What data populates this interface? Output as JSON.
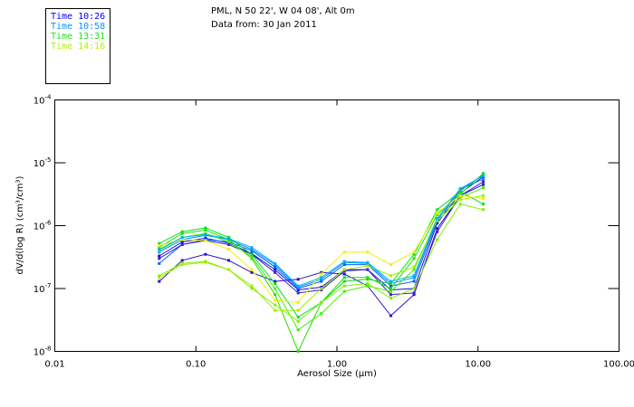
{
  "header": {
    "line1": "PML, N 50 22', W 04 08', Alt 0m",
    "line2": "Data from: 30 Jan 2011"
  },
  "legend": {
    "items": [
      {
        "label": "Time 10:26",
        "color": "#0000ff"
      },
      {
        "label": "Time 10:58",
        "color": "#0090ff"
      },
      {
        "label": "Time 13:31",
        "color": "#20e020"
      },
      {
        "label": "Time 14:16",
        "color": "#b0f000"
      }
    ]
  },
  "chart_data": {
    "type": "line",
    "title": "",
    "xlabel": "Aerosol Size (µm)",
    "ylabel": "dV/d(log R) (cm³/cm³)",
    "xscale": "log",
    "yscale": "log",
    "xlim": [
      0.01,
      100
    ],
    "ylim": [
      1e-08,
      0.0001
    ],
    "xticks": [
      "0.01",
      "0.10",
      "1.00",
      "10.00",
      "100.00"
    ],
    "yticks": [
      {
        "base": "10",
        "exp": "-4"
      },
      {
        "base": "10",
        "exp": "-5"
      },
      {
        "base": "10",
        "exp": "-6"
      },
      {
        "base": "10",
        "exp": "-7"
      },
      {
        "base": "10",
        "exp": "-8"
      }
    ],
    "x": [
      0.055,
      0.08,
      0.117,
      0.171,
      0.249,
      0.364,
      0.531,
      0.775,
      1.13,
      1.65,
      2.41,
      3.52,
      5.14,
      7.5,
      10.9
    ],
    "series": [
      {
        "color": "#1010e0",
        "values": [
          3.3e-07,
          5.5e-07,
          6.3e-07,
          5.3e-07,
          3.6e-07,
          2e-07,
          9.5e-08,
          1.05e-07,
          2e-07,
          2e-07,
          9.5e-08,
          1e-07,
          1.1e-06,
          3.3e-06,
          6e-06
        ]
      },
      {
        "color": "#0060ff",
        "values": [
          2.5e-07,
          5e-07,
          6e-07,
          5.5e-07,
          4e-07,
          2.2e-07,
          1e-07,
          1.3e-07,
          2.4e-07,
          2.4e-07,
          1.1e-07,
          1.3e-07,
          1.2e-06,
          3.6e-06,
          6.5e-06
        ]
      },
      {
        "color": "#0090ff",
        "values": [
          3.8e-07,
          6e-07,
          7e-07,
          6e-07,
          4.2e-07,
          2.4e-07,
          1.05e-07,
          1.4e-07,
          2.6e-07,
          2.5e-07,
          1.2e-07,
          1.5e-07,
          1.3e-06,
          3.8e-06,
          5.5e-06
        ]
      },
      {
        "color": "#3010c0",
        "values": [
          1.3e-07,
          2.8e-07,
          3.5e-07,
          2.8e-07,
          1.8e-07,
          1.3e-07,
          1.4e-07,
          1.8e-07,
          1.7e-07,
          1.1e-07,
          3.7e-08,
          8e-08,
          9e-07,
          3e-06,
          4.5e-06
        ]
      },
      {
        "color": "#4020d0",
        "values": [
          3e-07,
          5e-07,
          5.8e-07,
          5e-07,
          3.5e-07,
          1.8e-07,
          8.5e-08,
          9.5e-08,
          1.9e-07,
          2e-07,
          8e-08,
          8.5e-08,
          8e-07,
          3e-06,
          5e-06
        ]
      },
      {
        "color": "#00e020",
        "values": [
          5.2e-07,
          8e-07,
          9.2e-07,
          6.5e-07,
          3.5e-07,
          1.2e-07,
          3.5e-08,
          6e-08,
          1.3e-07,
          1.4e-07,
          1.2e-07,
          3.5e-07,
          1.8e-06,
          3.5e-06,
          2.2e-06
        ]
      },
      {
        "color": "#20e000",
        "values": [
          4.5e-07,
          7.5e-07,
          8.5e-07,
          6e-07,
          3e-07,
          8e-08,
          1e-08,
          6e-08,
          1.5e-07,
          1.5e-07,
          1e-07,
          3e-07,
          1.5e-06,
          3.2e-06,
          6.8e-06
        ]
      },
      {
        "color": "#40f000",
        "values": [
          4e-07,
          6.5e-07,
          7.5e-07,
          5.5e-07,
          3.2e-07,
          1e-07,
          2.2e-08,
          4e-08,
          9e-08,
          1.1e-07,
          9e-08,
          2e-07,
          1.3e-06,
          2.8e-06,
          4e-06
        ]
      },
      {
        "color": "#80f000",
        "values": [
          1.6e-07,
          2.5e-07,
          2.7e-07,
          2e-07,
          1e-07,
          5.5e-08,
          3e-08,
          6e-08,
          1.1e-07,
          1.2e-07,
          7e-08,
          1e-07,
          6e-07,
          2.2e-06,
          1.8e-06
        ]
      },
      {
        "color": "#a0f000",
        "values": [
          1.5e-07,
          2.4e-07,
          2.6e-07,
          2e-07,
          1.1e-07,
          4.5e-08,
          4.5e-08,
          1e-07,
          2e-07,
          2.3e-07,
          1.6e-07,
          2.2e-07,
          1.2e-06,
          2.6e-06,
          3e-06
        ]
      },
      {
        "color": "#f0f000",
        "values": [
          4.8e-07,
          6e-07,
          5.8e-07,
          4.2e-07,
          2e-07,
          6.5e-08,
          6e-08,
          1.7e-07,
          3.8e-07,
          3.8e-07,
          2.4e-07,
          3.8e-07,
          1.6e-06,
          3e-06,
          2.7e-06
        ]
      },
      {
        "color": "#00b0ff",
        "values": [
          4.2e-07,
          6.5e-07,
          7.2e-07,
          6.2e-07,
          4.5e-07,
          2.5e-07,
          1.1e-07,
          1.5e-07,
          2.7e-07,
          2.6e-07,
          1.3e-07,
          1.6e-07,
          1.3e-06,
          3.9e-06,
          6.2e-06
        ]
      }
    ]
  }
}
